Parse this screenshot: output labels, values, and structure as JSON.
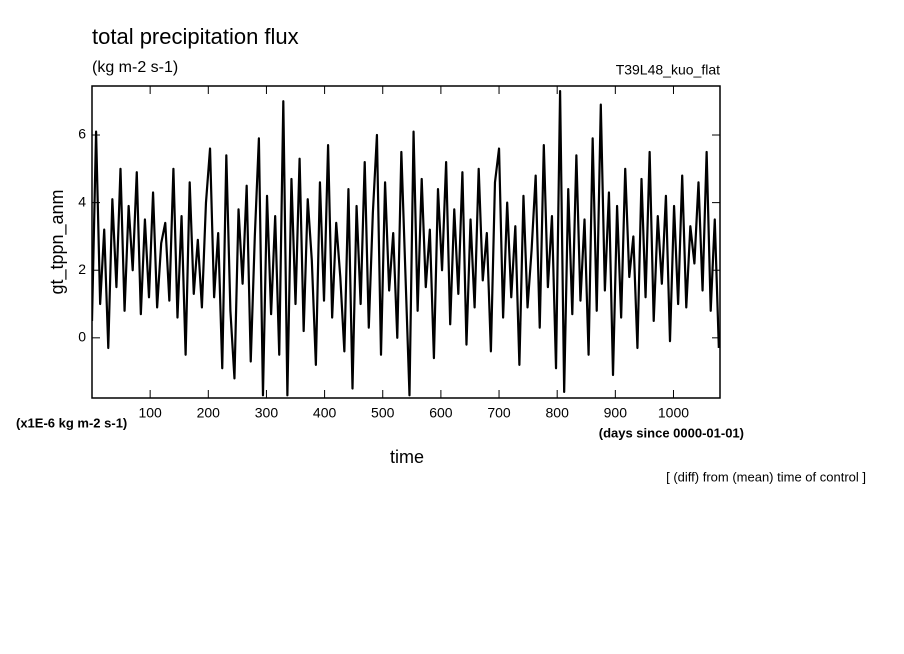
{
  "chart_data": {
    "type": "line",
    "title": "total precipitation flux",
    "subtitle": "(kg m-2 s-1)",
    "run_label": "T39L48_kuo_flat",
    "y_label": "gt_tppn_anm",
    "x_label": "time",
    "y_unit_label": "(x1E-6 kg m-2 s-1)",
    "x_unit_label": "(days since 0000-01-01)",
    "note": "[ (diff) from (mean) time of control ]",
    "xlim": [
      0,
      1080
    ],
    "ylim": [
      -1.78,
      7.45
    ],
    "xticks": [
      100,
      200,
      300,
      400,
      500,
      600,
      700,
      800,
      900,
      1000
    ],
    "yticks": [
      0,
      2,
      4,
      6
    ],
    "grid": false,
    "x": [
      0,
      7,
      14,
      21,
      28,
      35,
      42,
      49,
      56,
      63,
      70,
      77,
      84,
      91,
      98,
      105,
      112,
      119,
      126,
      133,
      140,
      147,
      154,
      161,
      168,
      175,
      182,
      189,
      196,
      203,
      210,
      217,
      224,
      231,
      238,
      245,
      252,
      259,
      266,
      273,
      280,
      287,
      294,
      301,
      308,
      315,
      322,
      329,
      336,
      343,
      350,
      357,
      364,
      371,
      378,
      385,
      392,
      399,
      406,
      413,
      420,
      427,
      434,
      441,
      448,
      455,
      462,
      469,
      476,
      483,
      490,
      497,
      504,
      511,
      518,
      525,
      532,
      539,
      546,
      553,
      560,
      567,
      574,
      581,
      588,
      595,
      602,
      609,
      616,
      623,
      630,
      637,
      644,
      651,
      658,
      665,
      672,
      679,
      686,
      693,
      700,
      707,
      714,
      721,
      728,
      735,
      742,
      749,
      756,
      763,
      770,
      777,
      784,
      791,
      798,
      805,
      812,
      819,
      826,
      833,
      840,
      847,
      854,
      861,
      868,
      875,
      882,
      889,
      896,
      903,
      910,
      917,
      924,
      931,
      938,
      945,
      952,
      959,
      966,
      973,
      980,
      987,
      994,
      1001,
      1008,
      1015,
      1022,
      1029,
      1036,
      1043,
      1050,
      1057,
      1064,
      1071,
      1078
    ],
    "series": [
      {
        "name": "gt_tppn_anm",
        "color": "#000000",
        "values": [
          0.5,
          6.1,
          1.0,
          3.2,
          -0.3,
          4.1,
          1.5,
          5.0,
          0.8,
          3.9,
          2.0,
          4.9,
          0.7,
          3.5,
          1.2,
          4.3,
          0.9,
          2.8,
          3.4,
          1.1,
          5.0,
          0.6,
          3.6,
          -0.5,
          4.6,
          1.3,
          2.9,
          0.9,
          4.0,
          5.6,
          1.2,
          3.1,
          -0.9,
          5.4,
          0.8,
          -1.2,
          3.8,
          1.6,
          4.5,
          -0.7,
          3.0,
          5.9,
          -1.7,
          4.2,
          0.7,
          3.6,
          -0.5,
          7.0,
          -1.7,
          4.7,
          1.0,
          5.3,
          0.2,
          4.1,
          2.3,
          -0.8,
          4.6,
          1.1,
          5.7,
          0.6,
          3.4,
          1.8,
          -0.4,
          4.4,
          -1.5,
          3.9,
          1.0,
          5.2,
          0.3,
          3.7,
          6.0,
          -0.5,
          4.6,
          1.4,
          3.1,
          0.0,
          5.5,
          1.9,
          -1.7,
          6.1,
          0.8,
          4.7,
          1.5,
          3.2,
          -0.6,
          4.4,
          2.0,
          5.2,
          0.4,
          3.8,
          1.3,
          4.9,
          -0.2,
          3.5,
          0.9,
          5.0,
          1.7,
          3.1,
          -0.4,
          4.6,
          5.6,
          0.6,
          4.0,
          1.2,
          3.3,
          -0.8,
          4.2,
          0.9,
          2.6,
          4.8,
          0.3,
          5.7,
          1.5,
          3.6,
          -0.9,
          7.3,
          -1.6,
          4.4,
          0.7,
          5.4,
          1.1,
          3.5,
          -0.5,
          5.9,
          0.8,
          6.9,
          1.4,
          4.3,
          -1.1,
          3.9,
          0.6,
          5.0,
          1.8,
          3.0,
          -0.3,
          4.7,
          1.2,
          5.5,
          0.5,
          3.6,
          1.6,
          4.2,
          -0.1,
          3.9,
          1.0,
          4.8,
          0.9,
          3.3,
          2.2,
          4.6,
          1.4,
          5.5,
          0.8,
          3.5,
          -0.3
        ]
      }
    ]
  }
}
